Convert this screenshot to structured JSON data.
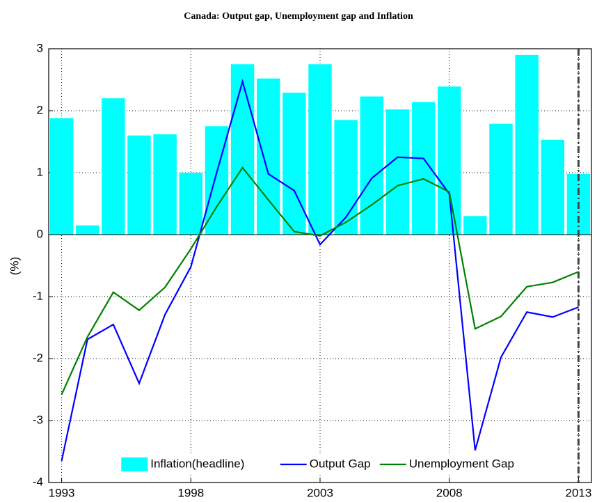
{
  "chart_data": {
    "type": "bar",
    "title": "Canada: Output gap, Unemployment gap and Inflation",
    "ylabel": "(%)",
    "x": [
      1993,
      1994,
      1995,
      1996,
      1997,
      1998,
      1999,
      2000,
      2001,
      2002,
      2003,
      2004,
      2005,
      2006,
      2007,
      2008,
      2009,
      2010,
      2011,
      2012,
      2013
    ],
    "series": [
      {
        "name": "Inflation(headline)",
        "type": "bar",
        "color": "#00ffff",
        "values": [
          1.88,
          0.15,
          2.2,
          1.6,
          1.62,
          1.0,
          1.75,
          2.75,
          2.52,
          2.29,
          2.75,
          1.85,
          2.23,
          2.02,
          2.14,
          2.39,
          0.3,
          1.79,
          2.9,
          1.53,
          0.98
        ]
      },
      {
        "name": "Output Gap",
        "type": "line",
        "color": "#0000ff",
        "values": [
          -3.65,
          -1.69,
          -1.45,
          -2.4,
          -1.29,
          -0.52,
          1.0,
          2.47,
          0.98,
          0.71,
          -0.16,
          0.28,
          0.91,
          1.25,
          1.23,
          0.66,
          -3.48,
          -1.98,
          -1.25,
          -1.33,
          -1.17
        ]
      },
      {
        "name": "Unemployment Gap",
        "type": "line",
        "color": "#008000",
        "values": [
          -2.58,
          -1.65,
          -0.93,
          -1.22,
          -0.85,
          -0.23,
          0.45,
          1.08,
          0.56,
          0.05,
          -0.02,
          0.2,
          0.48,
          0.79,
          0.9,
          0.69,
          -1.52,
          -1.32,
          -0.84,
          -0.77,
          -0.6
        ]
      }
    ],
    "xlim": [
      1992.5,
      2013.5
    ],
    "xticks": [
      1993,
      1998,
      2003,
      2008,
      2013
    ],
    "ylim": [
      -4,
      3
    ],
    "yticks": [
      -4,
      -3,
      -2,
      -1,
      0,
      1,
      2,
      3
    ],
    "grid": true,
    "legend": "lower center",
    "vline": 2013
  }
}
